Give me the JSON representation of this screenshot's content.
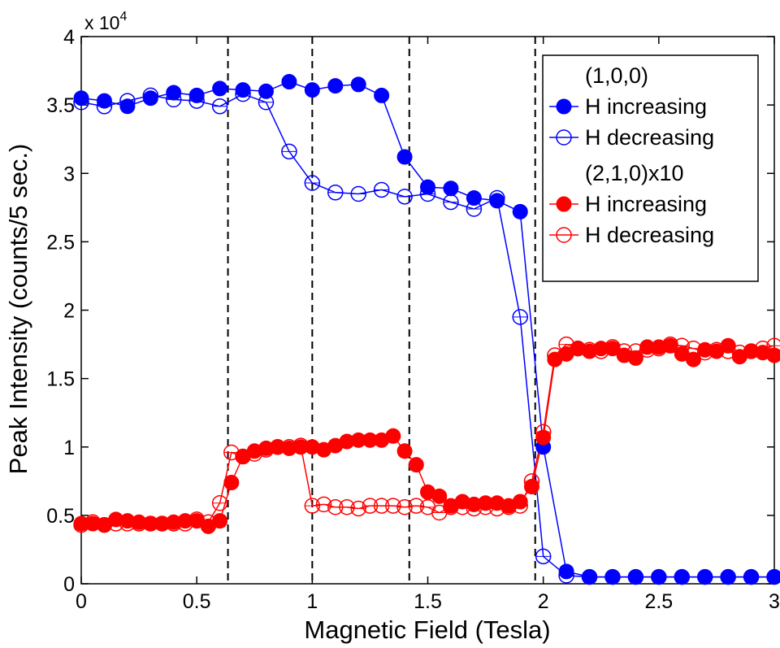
{
  "chart_data": {
    "type": "line",
    "title": "",
    "xlabel": "Magnetic Field (Tesla)",
    "ylabel": "Peak Intensity (counts/5 sec.)",
    "y_multiplier_label": "x 10",
    "y_multiplier_exponent": "4",
    "xlim": [
      0,
      3
    ],
    "ylim": [
      0,
      4
    ],
    "x_ticks": [
      0,
      0.5,
      1,
      1.5,
      2,
      2.5,
      3
    ],
    "y_ticks": [
      0,
      0.5,
      1,
      1.5,
      2,
      2.5,
      3,
      3.5,
      4
    ],
    "x_tick_labels": [
      "0",
      "0.5",
      "1",
      "1.5",
      "2",
      "2.5",
      "3"
    ],
    "y_tick_labels": [
      "0",
      "0.5",
      "1",
      "1.5",
      "2",
      "2.5",
      "3",
      "3.5",
      "4"
    ],
    "vlines": [
      0.635,
      1.0,
      1.42,
      1.965
    ],
    "grid": false,
    "legend_position": "top-right",
    "legend_groups": [
      {
        "heading": "(1,0,0)",
        "entries": [
          {
            "series": 0,
            "label": "H increasing"
          },
          {
            "series": 1,
            "label": "H decreasing"
          }
        ]
      },
      {
        "heading": "(2,1,0)x10",
        "entries": [
          {
            "series": 2,
            "label": "H increasing"
          },
          {
            "series": 3,
            "label": "H decreasing"
          }
        ]
      }
    ],
    "series": [
      {
        "label": "H increasing",
        "color": "#0000ff",
        "marker": "filled",
        "x": [
          0,
          0.1,
          0.2,
          0.3,
          0.4,
          0.5,
          0.6,
          0.7,
          0.8,
          0.9,
          1.0,
          1.1,
          1.2,
          1.3,
          1.4,
          1.5,
          1.6,
          1.7,
          1.8,
          1.9,
          2.0,
          2.1,
          2.2,
          2.3,
          2.4,
          2.5,
          2.6,
          2.7,
          2.8,
          2.9,
          3.0
        ],
        "y": [
          3.55,
          3.53,
          3.49,
          3.55,
          3.59,
          3.57,
          3.62,
          3.61,
          3.6,
          3.67,
          3.61,
          3.64,
          3.65,
          3.57,
          3.12,
          2.9,
          2.89,
          2.82,
          2.8,
          2.72,
          1.0,
          0.09,
          0.05,
          0.05,
          0.05,
          0.05,
          0.05,
          0.05,
          0.05,
          0.05,
          0.05
        ]
      },
      {
        "label": "H decreasing",
        "color": "#0000ff",
        "marker": "open",
        "x": [
          3.0,
          2.9,
          2.8,
          2.7,
          2.6,
          2.5,
          2.4,
          2.3,
          2.2,
          2.1,
          2.0,
          1.9,
          1.8,
          1.7,
          1.6,
          1.5,
          1.4,
          1.3,
          1.2,
          1.1,
          1.0,
          0.9,
          0.8,
          0.7,
          0.6,
          0.5,
          0.4,
          0.3,
          0.2,
          0.1,
          0
        ],
        "y": [
          0.05,
          0.05,
          0.05,
          0.05,
          0.05,
          0.05,
          0.05,
          0.05,
          0.05,
          0.06,
          0.2,
          1.95,
          2.82,
          2.74,
          2.79,
          2.85,
          2.83,
          2.88,
          2.85,
          2.86,
          2.93,
          3.16,
          3.52,
          3.58,
          3.49,
          3.53,
          3.54,
          3.57,
          3.53,
          3.49,
          3.52
        ]
      },
      {
        "label": "H increasing",
        "color": "#ff0000",
        "marker": "filled",
        "x": [
          0,
          0.05,
          0.1,
          0.15,
          0.2,
          0.25,
          0.3,
          0.35,
          0.4,
          0.45,
          0.5,
          0.55,
          0.6,
          0.65,
          0.7,
          0.75,
          0.8,
          0.85,
          0.9,
          0.95,
          1.0,
          1.05,
          1.1,
          1.15,
          1.2,
          1.25,
          1.3,
          1.35,
          1.4,
          1.45,
          1.5,
          1.55,
          1.6,
          1.65,
          1.7,
          1.75,
          1.8,
          1.85,
          1.9,
          1.95,
          2.0,
          2.05,
          2.1,
          2.15,
          2.2,
          2.25,
          2.3,
          2.35,
          2.4,
          2.45,
          2.5,
          2.55,
          2.6,
          2.65,
          2.7,
          2.75,
          2.8,
          2.85,
          2.9,
          2.95,
          3.0
        ],
        "y": [
          0.44,
          0.44,
          0.43,
          0.47,
          0.46,
          0.45,
          0.44,
          0.44,
          0.45,
          0.46,
          0.46,
          0.42,
          0.46,
          0.74,
          0.93,
          0.97,
          0.99,
          1.0,
          0.99,
          1.0,
          1.0,
          0.98,
          1.01,
          1.04,
          1.05,
          1.05,
          1.05,
          1.08,
          0.97,
          0.87,
          0.67,
          0.64,
          0.57,
          0.6,
          0.58,
          0.59,
          0.59,
          0.57,
          0.6,
          0.71,
          1.07,
          1.64,
          1.68,
          1.72,
          1.7,
          1.72,
          1.72,
          1.67,
          1.65,
          1.73,
          1.73,
          1.74,
          1.68,
          1.64,
          1.71,
          1.7,
          1.74,
          1.66,
          1.7,
          1.69,
          1.67
        ]
      },
      {
        "label": "H decreasing",
        "color": "#ff0000",
        "marker": "open",
        "x": [
          3.0,
          2.95,
          2.9,
          2.85,
          2.8,
          2.75,
          2.7,
          2.65,
          2.6,
          2.55,
          2.5,
          2.45,
          2.4,
          2.35,
          2.3,
          2.25,
          2.2,
          2.15,
          2.1,
          2.05,
          2.0,
          1.95,
          1.9,
          1.85,
          1.8,
          1.75,
          1.7,
          1.65,
          1.6,
          1.55,
          1.5,
          1.45,
          1.4,
          1.35,
          1.3,
          1.25,
          1.2,
          1.15,
          1.1,
          1.05,
          1.0,
          0.95,
          0.9,
          0.85,
          0.8,
          0.75,
          0.7,
          0.65,
          0.6,
          0.55,
          0.5,
          0.45,
          0.4,
          0.35,
          0.3,
          0.25,
          0.2,
          0.15,
          0.1,
          0.05,
          0
        ],
        "y": [
          1.74,
          1.72,
          1.7,
          1.69,
          1.7,
          1.71,
          1.69,
          1.72,
          1.74,
          1.75,
          1.72,
          1.71,
          1.7,
          1.7,
          1.73,
          1.7,
          1.71,
          1.72,
          1.75,
          1.67,
          1.11,
          0.75,
          0.57,
          0.56,
          0.55,
          0.56,
          0.55,
          0.56,
          0.56,
          0.52,
          0.56,
          0.57,
          0.56,
          0.57,
          0.57,
          0.57,
          0.55,
          0.56,
          0.56,
          0.58,
          0.57,
          1.01,
          1.0,
          1.0,
          0.98,
          0.95,
          0.93,
          0.96,
          0.59,
          0.45,
          0.47,
          0.44,
          0.44,
          0.44,
          0.44,
          0.44,
          0.44,
          0.44,
          0.43,
          0.45,
          0.43
        ]
      }
    ]
  }
}
